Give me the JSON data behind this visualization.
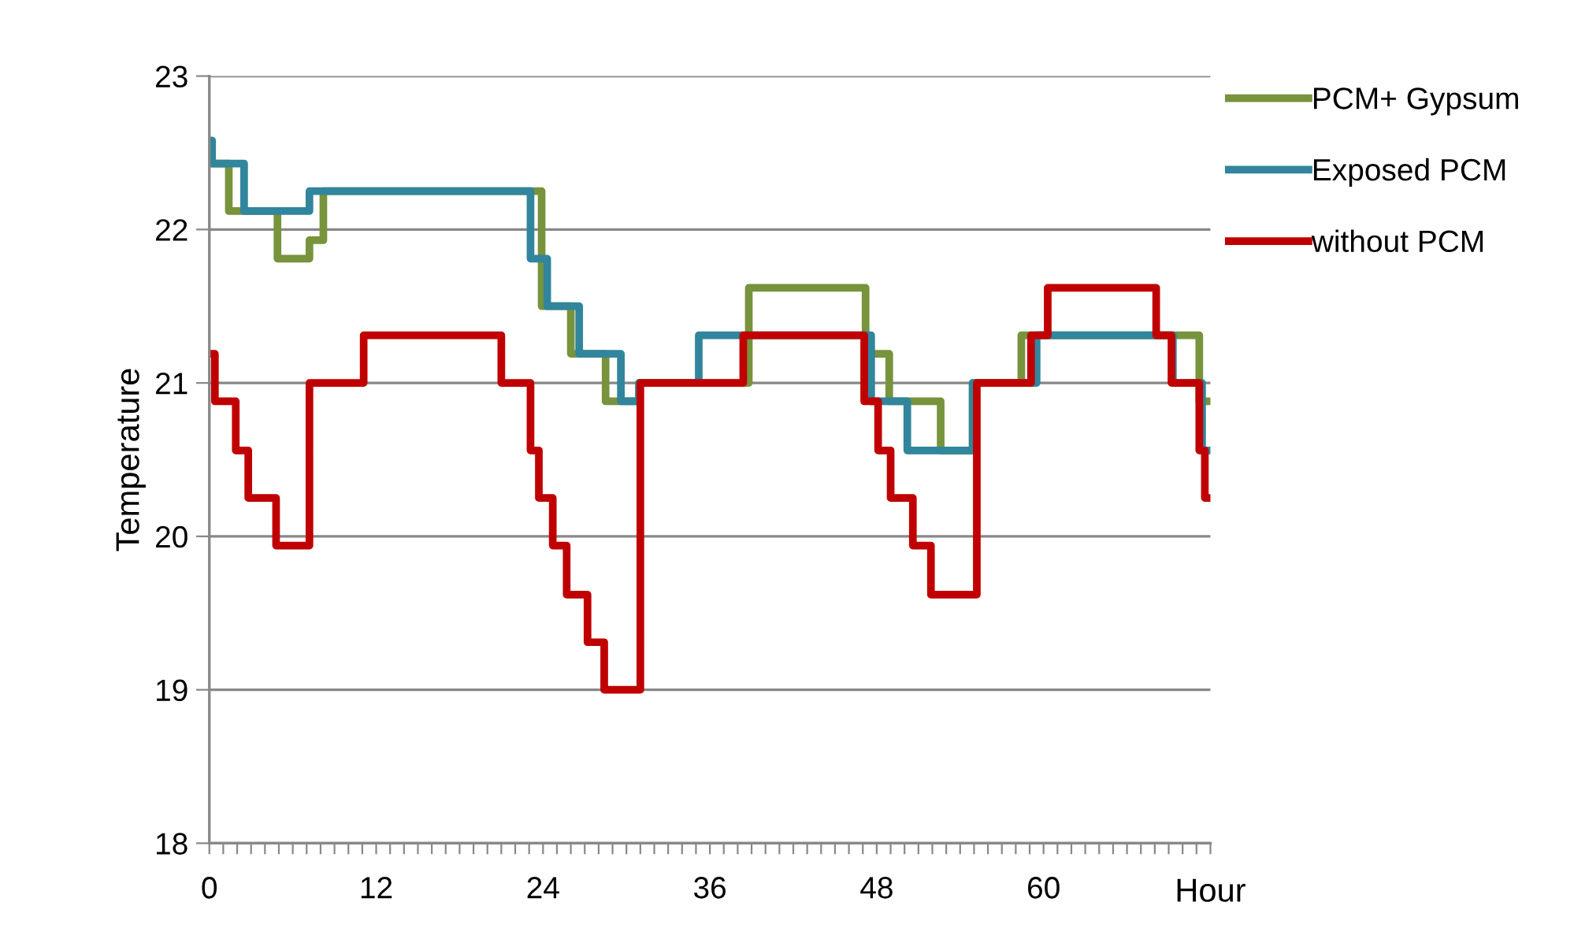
{
  "chart_data": {
    "type": "step",
    "xlabel": "Hour",
    "ylabel": "Temperature",
    "xlim": [
      0,
      72
    ],
    "ylim": [
      18,
      23
    ],
    "yticks": [
      18,
      19,
      20,
      21,
      22,
      23
    ],
    "xticks": [
      0,
      {
        "value": 1,
        "label": null
      },
      {
        "value": 2,
        "label": null
      },
      {
        "value": 3,
        "label": null
      },
      {
        "value": 4,
        "label": null
      },
      {
        "value": 5,
        "label": null
      },
      {
        "value": 6,
        "label": null
      },
      {
        "value": 7,
        "label": null
      },
      {
        "value": 8,
        "label": null
      },
      {
        "value": 9,
        "label": null
      },
      {
        "value": 10,
        "label": null
      },
      {
        "value": 11,
        "label": null
      },
      12,
      {
        "value": 13,
        "label": null
      },
      {
        "value": 14,
        "label": null
      },
      {
        "value": 15,
        "label": null
      },
      {
        "value": 16,
        "label": null
      },
      {
        "value": 17,
        "label": null
      },
      {
        "value": 18,
        "label": null
      },
      {
        "value": 19,
        "label": null
      },
      {
        "value": 20,
        "label": null
      },
      {
        "value": 21,
        "label": null
      },
      {
        "value": 22,
        "label": null
      },
      {
        "value": 23,
        "label": null
      },
      24,
      {
        "value": 25,
        "label": null
      },
      {
        "value": 26,
        "label": null
      },
      {
        "value": 27,
        "label": null
      },
      {
        "value": 28,
        "label": null
      },
      {
        "value": 29,
        "label": null
      },
      {
        "value": 30,
        "label": null
      },
      {
        "value": 31,
        "label": null
      },
      {
        "value": 32,
        "label": null
      },
      {
        "value": 33,
        "label": null
      },
      {
        "value": 34,
        "label": null
      },
      {
        "value": 35,
        "label": null
      },
      36,
      {
        "value": 37,
        "label": null
      },
      {
        "value": 38,
        "label": null
      },
      {
        "value": 39,
        "label": null
      },
      {
        "value": 40,
        "label": null
      },
      {
        "value": 41,
        "label": null
      },
      {
        "value": 42,
        "label": null
      },
      {
        "value": 43,
        "label": null
      },
      {
        "value": 44,
        "label": null
      },
      {
        "value": 45,
        "label": null
      },
      {
        "value": 46,
        "label": null
      },
      {
        "value": 47,
        "label": null
      },
      48,
      {
        "value": 49,
        "label": null
      },
      {
        "value": 50,
        "label": null
      },
      {
        "value": 51,
        "label": null
      },
      {
        "value": 52,
        "label": null
      },
      {
        "value": 53,
        "label": null
      },
      {
        "value": 54,
        "label": null
      },
      {
        "value": 55,
        "label": null
      },
      {
        "value": 56,
        "label": null
      },
      {
        "value": 57,
        "label": null
      },
      {
        "value": 58,
        "label": null
      },
      {
        "value": 59,
        "label": null
      },
      60,
      {
        "value": 61,
        "label": null
      },
      {
        "value": 62,
        "label": null
      },
      {
        "value": 63,
        "label": null
      },
      {
        "value": 64,
        "label": null
      },
      {
        "value": 65,
        "label": null
      },
      {
        "value": 66,
        "label": null
      },
      {
        "value": 67,
        "label": null
      },
      {
        "value": 68,
        "label": null
      },
      {
        "value": 69,
        "label": null
      },
      {
        "value": 70,
        "label": null
      },
      {
        "value": 71,
        "label": null
      },
      {
        "value": 72,
        "label": null
      }
    ],
    "grid": "y",
    "legend": "right",
    "marker": "none",
    "line_style": "solid",
    "series": [
      {
        "name": "PCM+ Gypsum",
        "color": "#77933c",
        "x": [
          0,
          1.4,
          4.9,
          7.2,
          8.2,
          23.9,
          26.0,
          28.5,
          30.9,
          38.8,
          47.2,
          48.9,
          52.6,
          54.9,
          58.4,
          71.2,
          72
        ],
        "values": [
          22.43,
          22.12,
          21.81,
          21.93,
          22.25,
          21.5,
          21.19,
          20.88,
          21.0,
          21.62,
          21.19,
          20.88,
          20.56,
          21.0,
          21.31,
          20.88,
          20.88
        ]
      },
      {
        "name": "Exposed PCM",
        "color": "#31859c",
        "x": [
          0,
          0.2,
          2.5,
          7.2,
          23.1,
          24.3,
          26.6,
          29.6,
          30.9,
          35.2,
          47.6,
          50.2,
          54.9,
          59.5,
          69.3,
          71.4,
          72
        ],
        "values": [
          22.58,
          22.43,
          22.12,
          22.25,
          21.81,
          21.5,
          21.19,
          20.88,
          21.0,
          21.31,
          20.88,
          20.56,
          21.0,
          21.31,
          21.0,
          20.56,
          20.56
        ]
      },
      {
        "name": "without PCM",
        "color": "#c00000",
        "x": [
          0,
          0.4,
          1.9,
          2.8,
          4.8,
          7.2,
          11.1,
          21.0,
          23.1,
          23.7,
          24.7,
          25.7,
          27.2,
          28.4,
          31.0,
          38.4,
          47.1,
          48.1,
          49.0,
          50.6,
          51.9,
          55.2,
          59.1,
          60.3,
          68.1,
          69.2,
          71.2,
          71.6,
          72
        ],
        "values": [
          21.19,
          20.88,
          20.56,
          20.25,
          19.94,
          21.0,
          21.31,
          21.0,
          20.56,
          20.25,
          19.94,
          19.62,
          19.31,
          19.0,
          21.0,
          21.31,
          20.88,
          20.56,
          20.25,
          19.94,
          19.62,
          21.0,
          21.31,
          21.62,
          21.31,
          21.0,
          20.56,
          20.25,
          20.25
        ]
      }
    ]
  }
}
